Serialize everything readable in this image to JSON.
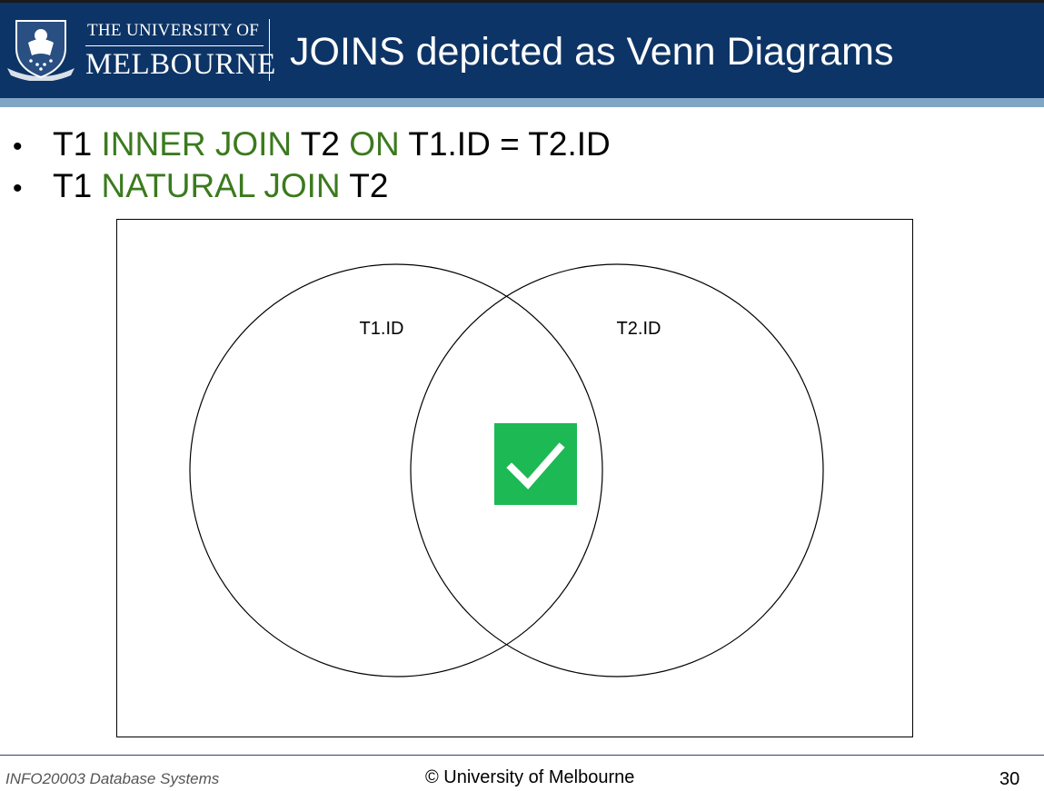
{
  "header": {
    "university_line1": "THE UNIVERSITY OF",
    "university_line2": "MELBOURNE",
    "title": "JOINS depicted as Venn Diagrams",
    "colors": {
      "background": "#0d3466",
      "stripe": "#7fa6c4"
    }
  },
  "bullets": [
    {
      "parts": [
        {
          "text": "T1 ",
          "keyword": false
        },
        {
          "text": "INNER JOIN",
          "keyword": true
        },
        {
          "text": " T2 ",
          "keyword": false
        },
        {
          "text": "ON",
          "keyword": true
        },
        {
          "text": " T1.ID = T2.ID",
          "keyword": false
        }
      ]
    },
    {
      "parts": [
        {
          "text": "T1 ",
          "keyword": false
        },
        {
          "text": "NATURAL JOIN",
          "keyword": true
        },
        {
          "text": " T2",
          "keyword": false
        }
      ]
    }
  ],
  "diagram": {
    "left_set_label": "T1.ID",
    "right_set_label": "T2.ID",
    "highlighted_region": "intersection",
    "marker_icon": "checkmark-icon",
    "marker_color": "#1db954",
    "keyword_color": "#3b7a1e"
  },
  "footer": {
    "course": "INFO20003 Database Systems",
    "copyright": "© University of Melbourne",
    "page_number": "30"
  }
}
